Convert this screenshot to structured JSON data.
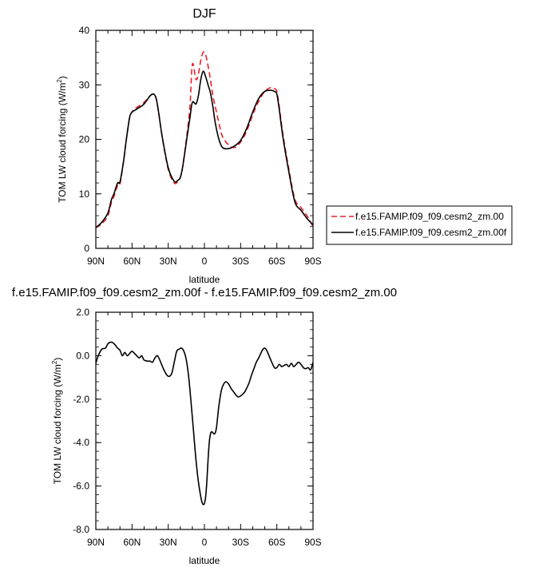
{
  "chart_data": [
    {
      "type": "line",
      "title": "DJF",
      "xlabel": "latitude",
      "ylabel": "TOM LW cloud forcing (W/m",
      "ylabel_sup": "2",
      "ylabel_close": ")",
      "x_ticks": [
        {
          "value": 90,
          "label": "90N"
        },
        {
          "value": 60,
          "label": "60N"
        },
        {
          "value": 30,
          "label": "30N"
        },
        {
          "value": 0,
          "label": "0"
        },
        {
          "value": -30,
          "label": "30S"
        },
        {
          "value": -60,
          "label": "60S"
        },
        {
          "value": -90,
          "label": "90S"
        }
      ],
      "y_ticks": [
        0,
        10,
        20,
        30,
        40
      ],
      "xlim": [
        90,
        -90
      ],
      "ylim": [
        0,
        40
      ],
      "legend_position": "right",
      "x": [
        90,
        85,
        80,
        77,
        75,
        72,
        70,
        67,
        65,
        62,
        60,
        58,
        55,
        50,
        45,
        42,
        40,
        38,
        35,
        30,
        25,
        22,
        20,
        18,
        15,
        12,
        10,
        7,
        5,
        3,
        1,
        -1,
        -3,
        -5,
        -7,
        -9,
        -12,
        -15,
        -20,
        -25,
        -30,
        -35,
        -40,
        -45,
        -50,
        -55,
        -58,
        -60,
        -62,
        -65,
        -70,
        -75,
        -80,
        -85,
        -90
      ],
      "series": [
        {
          "name": "f.e15.FAMIP.f09_f09.cesm2_zm.00",
          "color": "#e8202a",
          "dash": true,
          "values": [
            3.8,
            4.5,
            6.0,
            8.5,
            9.5,
            11.5,
            11.8,
            16.0,
            19.5,
            24.0,
            25.0,
            25.6,
            26.0,
            26.8,
            28.0,
            28.3,
            27.5,
            25.0,
            20.5,
            14.5,
            12.0,
            12.3,
            13.0,
            15.0,
            20.0,
            26.0,
            33.8,
            31.0,
            32.0,
            34.5,
            36.0,
            35.5,
            33.5,
            31.0,
            28.0,
            26.0,
            23.0,
            20.5,
            19.0,
            18.5,
            19.5,
            21.5,
            24.5,
            27.0,
            28.8,
            29.5,
            29.3,
            28.8,
            26.0,
            21.0,
            14.5,
            9.0,
            7.5,
            6.0,
            4.0
          ]
        },
        {
          "name": "f.e15.FAMIP.f09_f09.cesm2_zm.00f",
          "color": "#000000",
          "dash": false,
          "values": [
            3.8,
            4.8,
            6.5,
            9.0,
            10.0,
            12.0,
            12.2,
            16.0,
            19.5,
            24.0,
            25.0,
            25.3,
            25.7,
            26.5,
            28.0,
            28.3,
            27.5,
            25.0,
            20.5,
            14.8,
            12.3,
            12.5,
            13.0,
            15.0,
            19.5,
            24.0,
            26.8,
            26.5,
            28.0,
            31.0,
            32.5,
            31.5,
            30.0,
            28.5,
            26.0,
            23.0,
            20.0,
            18.5,
            18.3,
            18.8,
            19.8,
            22.0,
            25.0,
            27.5,
            28.8,
            29.0,
            28.8,
            28.3,
            25.5,
            20.5,
            14.0,
            8.5,
            7.0,
            5.5,
            4.3
          ]
        }
      ]
    },
    {
      "type": "line",
      "title": "f.e15.FAMIP.f09_f09.cesm2_zm.00f - f.e15.FAMIP.f09_f09.cesm2_zm.00",
      "xlabel": "latitude",
      "ylabel": "TOM LW cloud forcing (W/m",
      "ylabel_sup": "2",
      "ylabel_close": ")",
      "x_ticks": [
        {
          "value": 90,
          "label": "90N"
        },
        {
          "value": 60,
          "label": "60N"
        },
        {
          "value": 30,
          "label": "30N"
        },
        {
          "value": 0,
          "label": "0"
        },
        {
          "value": -30,
          "label": "30S"
        },
        {
          "value": -60,
          "label": "60S"
        },
        {
          "value": -90,
          "label": "90S"
        }
      ],
      "y_ticks": [
        {
          "value": 2,
          "label": "2.0"
        },
        {
          "value": 0,
          "label": "0.0"
        },
        {
          "value": -2,
          "label": "-2.0"
        },
        {
          "value": -4,
          "label": "-4.0"
        },
        {
          "value": -6,
          "label": "-6.0"
        },
        {
          "value": -8,
          "label": "-8.0"
        }
      ],
      "xlim": [
        90,
        -90
      ],
      "ylim": [
        -8,
        2
      ],
      "x": [
        90,
        88,
        85,
        82,
        80,
        78,
        76,
        74,
        72,
        70,
        68,
        66,
        64,
        62,
        60,
        57,
        54,
        52,
        50,
        47,
        45,
        43,
        41,
        39,
        37,
        34,
        31,
        29,
        27,
        25,
        23,
        21,
        19,
        17,
        15,
        13,
        11,
        9,
        7,
        5,
        3,
        2,
        1,
        0,
        -1,
        -2,
        -3,
        -4,
        -5,
        -6,
        -7,
        -8,
        -9,
        -10,
        -11,
        -12,
        -14,
        -16,
        -18,
        -20,
        -22,
        -24,
        -26,
        -28,
        -30,
        -33,
        -35,
        -37,
        -39,
        -41,
        -43,
        -45,
        -48,
        -50,
        -52,
        -55,
        -58,
        -60,
        -62,
        -64,
        -66,
        -68,
        -70,
        -72,
        -74,
        -76,
        -78,
        -80,
        -82,
        -84,
        -86,
        -88,
        -90
      ],
      "series": [
        {
          "name": "",
          "color": "#000000",
          "dash": false,
          "values": [
            -0.35,
            0.0,
            0.3,
            0.35,
            0.55,
            0.62,
            0.6,
            0.5,
            0.35,
            0.25,
            0.0,
            0.15,
            0.0,
            0.1,
            0.2,
            0.05,
            -0.1,
            0.0,
            -0.2,
            -0.25,
            -0.25,
            -0.3,
            -0.1,
            0.0,
            -0.2,
            -0.6,
            -0.9,
            -0.95,
            -0.8,
            -0.3,
            0.2,
            0.3,
            0.35,
            0.2,
            -0.2,
            -1.0,
            -2.2,
            -3.5,
            -4.8,
            -5.8,
            -6.5,
            -6.75,
            -6.85,
            -6.8,
            -6.5,
            -5.8,
            -4.8,
            -4.0,
            -3.6,
            -3.5,
            -3.55,
            -3.6,
            -3.55,
            -3.3,
            -2.8,
            -2.3,
            -1.6,
            -1.3,
            -1.2,
            -1.3,
            -1.5,
            -1.65,
            -1.8,
            -1.9,
            -1.85,
            -1.7,
            -1.5,
            -1.25,
            -0.9,
            -0.6,
            -0.3,
            -0.1,
            0.25,
            0.35,
            0.2,
            -0.2,
            -0.55,
            -0.55,
            -0.4,
            -0.5,
            -0.45,
            -0.4,
            -0.5,
            -0.35,
            -0.5,
            -0.4,
            -0.3,
            -0.4,
            -0.55,
            -0.6,
            -0.55,
            -0.65,
            -0.3
          ]
        }
      ]
    }
  ]
}
